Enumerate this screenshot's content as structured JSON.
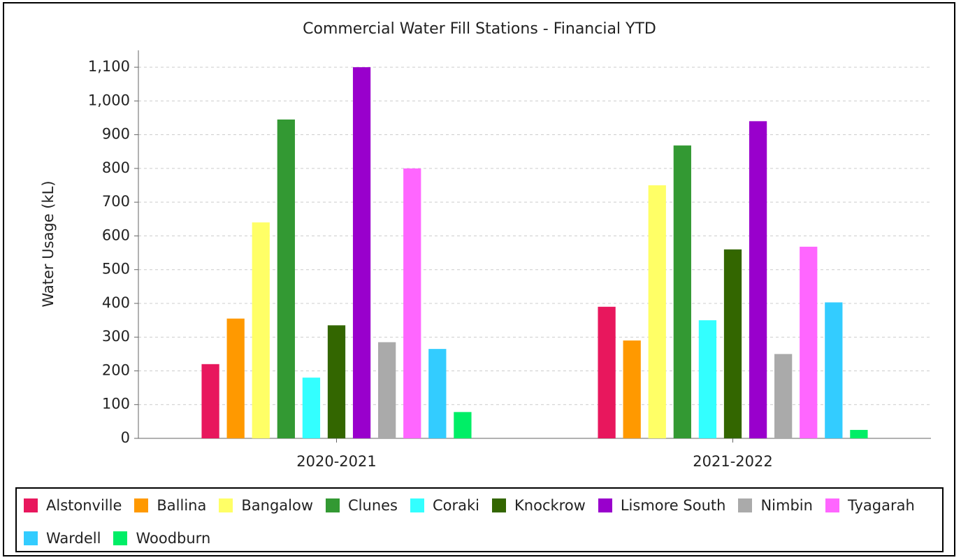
{
  "chart_data": {
    "type": "grouped_bar",
    "title": "Commercial Water Fill Stations - Financial YTD",
    "y_label": "Water Usage (kL)",
    "categories": [
      "2020-2021",
      "2021-2022"
    ],
    "series": [
      {
        "name": "Alstonville",
        "color": "#e8175d",
        "values": [
          220,
          390
        ]
      },
      {
        "name": "Ballina",
        "color": "#ff9900",
        "values": [
          355,
          290
        ]
      },
      {
        "name": "Bangalow",
        "color": "#ffff66",
        "values": [
          640,
          750
        ]
      },
      {
        "name": "Clunes",
        "color": "#339933",
        "values": [
          945,
          868
        ]
      },
      {
        "name": "Coraki",
        "color": "#33ffff",
        "values": [
          180,
          350
        ]
      },
      {
        "name": "Knockrow",
        "color": "#336600",
        "values": [
          335,
          560
        ]
      },
      {
        "name": "Lismore South",
        "color": "#9900cc",
        "values": [
          1100,
          940
        ]
      },
      {
        "name": "Nimbin",
        "color": "#aaaaaa",
        "values": [
          285,
          250
        ]
      },
      {
        "name": "Tyagarah",
        "color": "#ff66ff",
        "values": [
          800,
          568
        ]
      },
      {
        "name": "Wardell",
        "color": "#33ccff",
        "values": [
          265,
          403
        ]
      },
      {
        "name": "Woodburn",
        "color": "#00ee66",
        "values": [
          78,
          25
        ]
      }
    ],
    "ylim": [
      0,
      1150
    ],
    "yticks": [
      0,
      100,
      200,
      300,
      400,
      500,
      600,
      700,
      800,
      900,
      {
        "value": 1000,
        "label": "1,000"
      },
      {
        "value": 1100,
        "label": "1,100"
      }
    ],
    "grid": true
  }
}
